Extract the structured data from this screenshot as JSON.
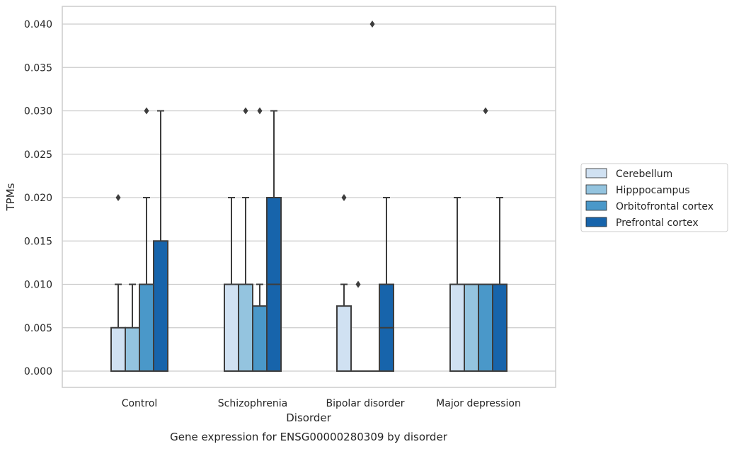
{
  "chart_data": {
    "type": "box",
    "title": "Gene expression for ENSG00000280309 by disorder",
    "xlabel": "Disorder",
    "ylabel": "TPMs",
    "ylim": [
      -0.002,
      0.042
    ],
    "yticks": [
      0.0,
      0.005,
      0.01,
      0.015,
      0.02,
      0.025,
      0.03,
      0.035,
      0.04
    ],
    "ytick_labels": [
      "0.000",
      "0.005",
      "0.010",
      "0.015",
      "0.020",
      "0.025",
      "0.030",
      "0.035",
      "0.040"
    ],
    "grid": "horizontal",
    "legend_placement": "right",
    "categories": [
      "Control",
      "Schizophrenia",
      "Bipolar disorder",
      "Major depression"
    ],
    "series": [
      {
        "name": "Cerebellum",
        "color": "#d0e1f2",
        "boxes": [
          {
            "whislo": 0.0,
            "q1": 0.0,
            "med": 0.0,
            "q3": 0.005,
            "whishi": 0.01,
            "fliers": [
              0.02
            ]
          },
          {
            "whislo": 0.0,
            "q1": 0.0,
            "med": 0.0,
            "q3": 0.01,
            "whishi": 0.02,
            "fliers": []
          },
          {
            "whislo": 0.0,
            "q1": 0.0,
            "med": 0.0,
            "q3": 0.0075,
            "whishi": 0.01,
            "fliers": [
              0.02
            ]
          },
          {
            "whislo": 0.0,
            "q1": 0.0,
            "med": 0.0,
            "q3": 0.01,
            "whishi": 0.02,
            "fliers": []
          }
        ]
      },
      {
        "name": "Hipppocampus",
        "color": "#94c4df",
        "boxes": [
          {
            "whislo": 0.0,
            "q1": 0.0,
            "med": 0.0,
            "q3": 0.005,
            "whishi": 0.01,
            "fliers": []
          },
          {
            "whislo": 0.0,
            "q1": 0.0,
            "med": 0.0,
            "q3": 0.01,
            "whishi": 0.02,
            "fliers": [
              0.03
            ]
          },
          {
            "whislo": 0.0,
            "q1": 0.0,
            "med": 0.0,
            "q3": 0.0,
            "whishi": 0.0,
            "fliers": [
              0.01
            ]
          },
          {
            "whislo": 0.0,
            "q1": 0.0,
            "med": 0.0,
            "q3": 0.01,
            "whishi": 0.01,
            "fliers": []
          }
        ]
      },
      {
        "name": "Orbitofrontal cortex",
        "color": "#4a98c9",
        "boxes": [
          {
            "whislo": 0.0,
            "q1": 0.0,
            "med": 0.0,
            "q3": 0.01,
            "whishi": 0.02,
            "fliers": [
              0.03
            ]
          },
          {
            "whislo": 0.0,
            "q1": 0.0,
            "med": 0.0,
            "q3": 0.0075,
            "whishi": 0.01,
            "fliers": [
              0.03
            ]
          },
          {
            "whislo": 0.0,
            "q1": 0.0,
            "med": 0.0,
            "q3": 0.0,
            "whishi": 0.0,
            "fliers": [
              0.04
            ]
          },
          {
            "whislo": 0.0,
            "q1": 0.0,
            "med": 0.0,
            "q3": 0.01,
            "whishi": 0.01,
            "fliers": [
              0.03
            ]
          }
        ]
      },
      {
        "name": "Prefrontal cortex",
        "color": "#1764ab",
        "boxes": [
          {
            "whislo": 0.0,
            "q1": 0.0,
            "med": 0.0,
            "q3": 0.015,
            "whishi": 0.03,
            "fliers": []
          },
          {
            "whislo": 0.0,
            "q1": 0.0,
            "med": 0.01,
            "q3": 0.02,
            "whishi": 0.03,
            "fliers": []
          },
          {
            "whislo": 0.0,
            "q1": 0.0,
            "med": 0.005,
            "q3": 0.01,
            "whishi": 0.02,
            "fliers": []
          },
          {
            "whislo": 0.0,
            "q1": 0.0,
            "med": 0.0,
            "q3": 0.01,
            "whishi": 0.02,
            "fliers": []
          }
        ]
      }
    ]
  }
}
